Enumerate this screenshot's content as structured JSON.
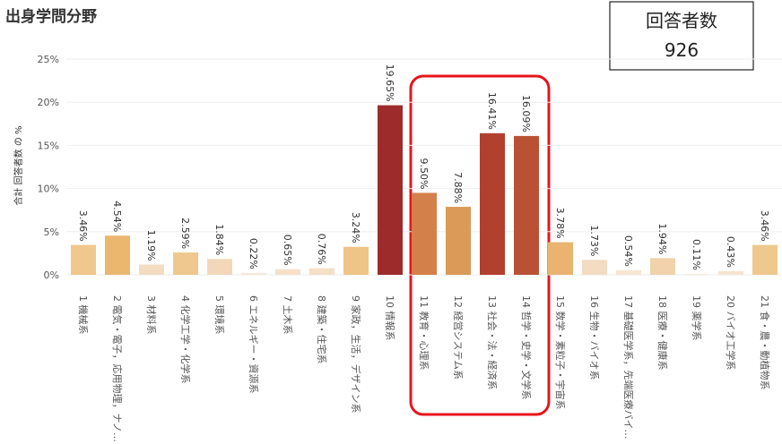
{
  "chart_data": {
    "type": "bar",
    "title": "出身学問分野",
    "y_label": "合計 回答者数 の %",
    "annotation": {
      "title": "回答者数",
      "value": 926
    },
    "categories": [
      "1 機械系",
      "2 電気・電子，応用物理，ナノ…",
      "3 材料系",
      "4 化学工学・化学系",
      "5 環境系",
      "6 エネルギー・資源系",
      "7 土木系",
      "8 建築・住宅系",
      "9 家政，生活，デザイン系",
      "10 情報系",
      "11 教育・心理系",
      "12 経営システム系",
      "13 社会・法・経済系",
      "14 哲学・史学・文学系",
      "15 数学・素粒子・宇宙系",
      "16 生物・バイオ系",
      "17 基礎医学系，先端医療バイ…",
      "18 医療・健康系",
      "19 薬学系",
      "20 バイオ工学系",
      "21 食・農・動植物系"
    ],
    "values": [
      3.46,
      4.54,
      1.19,
      2.59,
      1.84,
      0.22,
      0.65,
      0.76,
      3.24,
      19.65,
      9.5,
      7.88,
      16.41,
      16.09,
      3.78,
      1.73,
      0.54,
      1.94,
      0.11,
      0.43,
      3.46
    ],
    "value_labels": [
      "3.46%",
      "4.54%",
      "1.19%",
      "2.59%",
      "1.84%",
      "0.22%",
      "0.65%",
      "0.76%",
      "3.24%",
      "19.65%",
      "9.50%",
      "7.88%",
      "16.41%",
      "16.09%",
      "3.78%",
      "1.73%",
      "0.54%",
      "1.94%",
      "0.11%",
      "0.43%",
      "3.46%"
    ],
    "colors": [
      "#f0c78c",
      "#ebb76e",
      "#f3dcc0",
      "#efc88f",
      "#f2d8b8",
      "#f6e8d8",
      "#f5e0c8",
      "#f5dfc5",
      "#eec586",
      "#9e2b2b",
      "#d4804a",
      "#dc9a58",
      "#b2402e",
      "#b95234",
      "#eab470",
      "#f3dcc2",
      "#f6e6d3",
      "#f1d2ab",
      "#f7ebdd",
      "#f6e5d0",
      "#efc88c"
    ],
    "ylim": [
      0,
      25
    ],
    "yticks": [
      {
        "value": 0,
        "label": "0%"
      },
      {
        "value": 5,
        "label": "5%"
      },
      {
        "value": 10,
        "label": "10%"
      },
      {
        "value": 15,
        "label": "15%"
      },
      {
        "value": 20,
        "label": "20%"
      },
      {
        "value": 25,
        "label": "25%"
      }
    ],
    "grid": true
  }
}
